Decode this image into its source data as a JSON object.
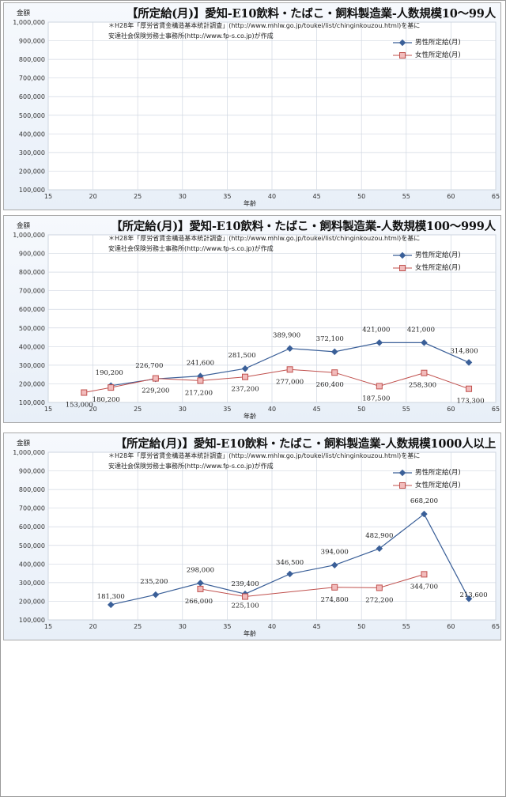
{
  "colors": {
    "male": "#3a5f98",
    "female": "#c0504d",
    "female_fill": "#f2bcbc",
    "grid": "#d0d7e2"
  },
  "charts": [
    {
      "title": "【所定給(月)】愛知-E10飲料・たばこ・飼料製造業-人数規模10～99人",
      "ylabel": "金額",
      "xlabel": "年齢",
      "note_line1": "＊H28年「厚労省賃金構造基本統計調査」(http://www.mhlw.go.jp/toukei/list/chinginkouzou.html)を基に",
      "note_line2": "安達社会保険労務士事務所(http://www.fp-s.co.jp)が作成",
      "legend_male": "男性所定給(月)",
      "legend_female": "女性所定給(月)",
      "x_ticks": [
        "15",
        "20",
        "25",
        "30",
        "35",
        "40",
        "45",
        "50",
        "55",
        "60",
        "65"
      ],
      "y_ticks": [
        "1,000,000",
        "900,000",
        "800,000",
        "700,000",
        "600,000",
        "500,000",
        "400,000",
        "300,000",
        "200,000",
        "100,000"
      ]
    },
    {
      "title": "【所定給(月)】愛知-E10飲料・たばこ・飼料製造業-人数規模100～999人",
      "ylabel": "金額",
      "xlabel": "年齢",
      "note_line1": "＊H28年「厚労省賃金構造基本統計調査」(http://www.mhlw.go.jp/toukei/list/chinginkouzou.html)を基に",
      "note_line2": "安達社会保険労務士事務所(http://www.fp-s.co.jp)が作成",
      "legend_male": "男性所定給(月)",
      "legend_female": "女性所定給(月)",
      "x_ticks": [
        "15",
        "20",
        "25",
        "30",
        "35",
        "40",
        "45",
        "50",
        "55",
        "60",
        "65"
      ],
      "y_ticks": [
        "1,000,000",
        "900,000",
        "800,000",
        "700,000",
        "600,000",
        "500,000",
        "400,000",
        "300,000",
        "200,000",
        "100,000"
      ]
    },
    {
      "title": "【所定給(月)】愛知-E10飲料・たばこ・飼料製造業-人数規模1000人以上",
      "ylabel": "金額",
      "xlabel": "年齢",
      "note_line1": "＊H28年「厚労省賃金構造基本統計調査」(http://www.mhlw.go.jp/toukei/list/chinginkouzou.html)を基に",
      "note_line2": "安達社会保険労務士事務所(http://www.fp-s.co.jp)が作成",
      "legend_male": "男性所定給(月)",
      "legend_female": "女性所定給(月)",
      "x_ticks": [
        "15",
        "20",
        "25",
        "30",
        "35",
        "40",
        "45",
        "50",
        "55",
        "60",
        "65"
      ],
      "y_ticks": [
        "1,000,000",
        "900,000",
        "800,000",
        "700,000",
        "600,000",
        "500,000",
        "400,000",
        "300,000",
        "200,000",
        "100,000"
      ]
    }
  ],
  "chart_data": [
    {
      "type": "line",
      "title": "【所定給(月)】愛知-E10飲料・たばこ・飼料製造業-人数規模10～99人",
      "xlabel": "年齢",
      "ylabel": "金額",
      "xlim": [
        15,
        65
      ],
      "ylim": [
        100000,
        1000000
      ],
      "grid": true,
      "legend": "top-right",
      "series": [
        {
          "name": "男性所定給(月)",
          "points": []
        },
        {
          "name": "女性所定給(月)",
          "points": []
        }
      ]
    },
    {
      "type": "line",
      "title": "【所定給(月)】愛知-E10飲料・たばこ・飼料製造業-人数規模100～999人",
      "xlabel": "年齢",
      "ylabel": "金額",
      "xlim": [
        15,
        65
      ],
      "ylim": [
        100000,
        1000000
      ],
      "grid": true,
      "legend": "top-right",
      "series": [
        {
          "name": "男性所定給(月)",
          "points": [
            {
              "x": 22,
              "y": 190200,
              "label": "190,200"
            },
            {
              "x": 27,
              "y": 226700,
              "label": "226,700"
            },
            {
              "x": 32,
              "y": 241600,
              "label": "241,600"
            },
            {
              "x": 37,
              "y": 281500,
              "label": "281,500"
            },
            {
              "x": 42,
              "y": 389900,
              "label": "389,900"
            },
            {
              "x": 47,
              "y": 372100,
              "label": "372,100"
            },
            {
              "x": 52,
              "y": 421000,
              "label": "421,000"
            },
            {
              "x": 57,
              "y": 421000,
              "label": "421,000"
            },
            {
              "x": 62,
              "y": 314800,
              "label": "314,800"
            }
          ]
        },
        {
          "name": "女性所定給(月)",
          "points": [
            {
              "x": 19,
              "y": 153000,
              "label": "153,000"
            },
            {
              "x": 22,
              "y": 180200,
              "label": "180,200"
            },
            {
              "x": 27,
              "y": 229200,
              "label": "229,200"
            },
            {
              "x": 32,
              "y": 217200,
              "label": "217,200"
            },
            {
              "x": 37,
              "y": 237200,
              "label": "237,200"
            },
            {
              "x": 42,
              "y": 277000,
              "label": "277,000"
            },
            {
              "x": 47,
              "y": 260400,
              "label": "260,400"
            },
            {
              "x": 52,
              "y": 187500,
              "label": "187,500"
            },
            {
              "x": 57,
              "y": 258300,
              "label": "258,300"
            },
            {
              "x": 62,
              "y": 173300,
              "label": "173,300"
            }
          ]
        }
      ]
    },
    {
      "type": "line",
      "title": "【所定給(月)】愛知-E10飲料・たばこ・飼料製造業-人数規模1000人以上",
      "xlabel": "年齢",
      "ylabel": "金額",
      "xlim": [
        15,
        65
      ],
      "ylim": [
        100000,
        1000000
      ],
      "grid": true,
      "legend": "top-right",
      "series": [
        {
          "name": "男性所定給(月)",
          "points": [
            {
              "x": 22,
              "y": 181300,
              "label": "181,300"
            },
            {
              "x": 27,
              "y": 235200,
              "label": "235,200"
            },
            {
              "x": 32,
              "y": 298000,
              "label": "298,000"
            },
            {
              "x": 37,
              "y": 239400,
              "label": "239,400"
            },
            {
              "x": 42,
              "y": 346500,
              "label": "346,500"
            },
            {
              "x": 47,
              "y": 394000,
              "label": "394,000"
            },
            {
              "x": 52,
              "y": 482900,
              "label": "482,900"
            },
            {
              "x": 57,
              "y": 668200,
              "label": "668,200"
            },
            {
              "x": 62,
              "y": 213600,
              "label": "213,600"
            }
          ]
        },
        {
          "name": "女性所定給(月)",
          "points": [
            {
              "x": 32,
              "y": 266000,
              "label": "266,000"
            },
            {
              "x": 37,
              "y": 225100,
              "label": "225,100"
            },
            {
              "x": 47,
              "y": 274800,
              "label": "274,800"
            },
            {
              "x": 52,
              "y": 272200,
              "label": "272,200"
            },
            {
              "x": 57,
              "y": 344700,
              "label": "344,700"
            }
          ]
        }
      ]
    }
  ]
}
